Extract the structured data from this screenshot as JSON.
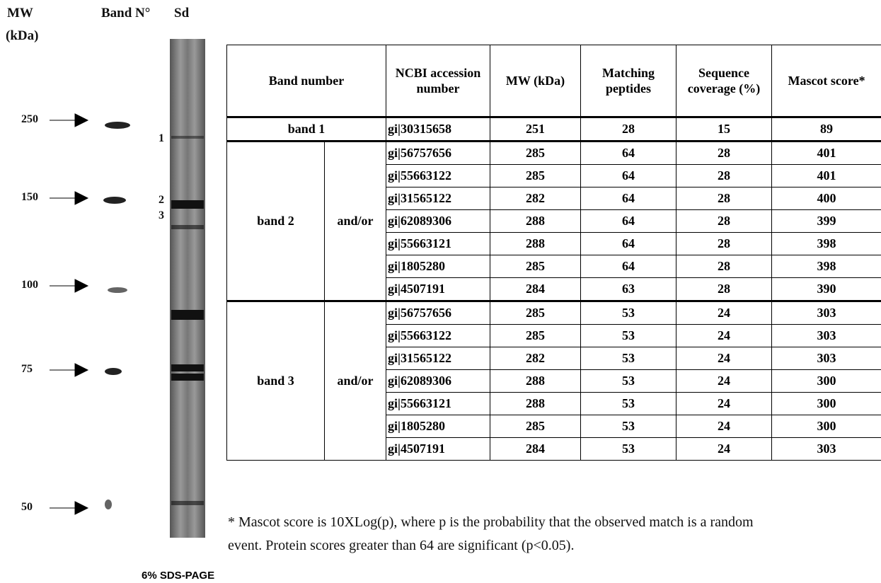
{
  "figure": {
    "mw_label": "MW",
    "mw_unit": "(kDa)",
    "band_no_label": "Band N°",
    "sd_label": "Sd",
    "markers": [
      250,
      150,
      100,
      75,
      50
    ],
    "band_labels": [
      1,
      2,
      3
    ],
    "gel_caption": "6% SDS-PAGE"
  },
  "table": {
    "headers": [
      "Band number",
      "NCBI accession number",
      "MW (kDa)",
      "Matching peptides",
      "Sequence coverage (%)",
      "Mascot score*"
    ],
    "band1": {
      "label": "band 1",
      "row": [
        "gi|30315658",
        251,
        28,
        15,
        89
      ]
    },
    "groups": [
      {
        "label": "band 2",
        "relation": "and/or",
        "rows": [
          [
            "gi|56757656",
            285,
            64,
            28,
            401
          ],
          [
            "gi|55663122",
            285,
            64,
            28,
            401
          ],
          [
            "gi|31565122",
            282,
            64,
            28,
            400
          ],
          [
            "gi|62089306",
            288,
            64,
            28,
            399
          ],
          [
            "gi|55663121",
            288,
            64,
            28,
            398
          ],
          [
            "gi|1805280",
            285,
            64,
            28,
            398
          ],
          [
            "gi|4507191",
            284,
            63,
            28,
            390
          ]
        ]
      },
      {
        "label": "band 3",
        "relation": "and/or",
        "rows": [
          [
            "gi|56757656",
            285,
            53,
            24,
            303
          ],
          [
            "gi|55663122",
            285,
            53,
            24,
            303
          ],
          [
            "gi|31565122",
            282,
            53,
            24,
            303
          ],
          [
            "gi|62089306",
            288,
            53,
            24,
            300
          ],
          [
            "gi|55663121",
            288,
            53,
            24,
            300
          ],
          [
            "gi|1805280",
            285,
            53,
            24,
            300
          ],
          [
            "gi|4507191",
            284,
            53,
            24,
            303
          ]
        ]
      }
    ]
  },
  "footnote": [
    "* Mascot score is 10XLog(p), where p is the probability that the observed match is a random",
    "event. Protein scores greater than 64 are significant (p<0.05)."
  ]
}
